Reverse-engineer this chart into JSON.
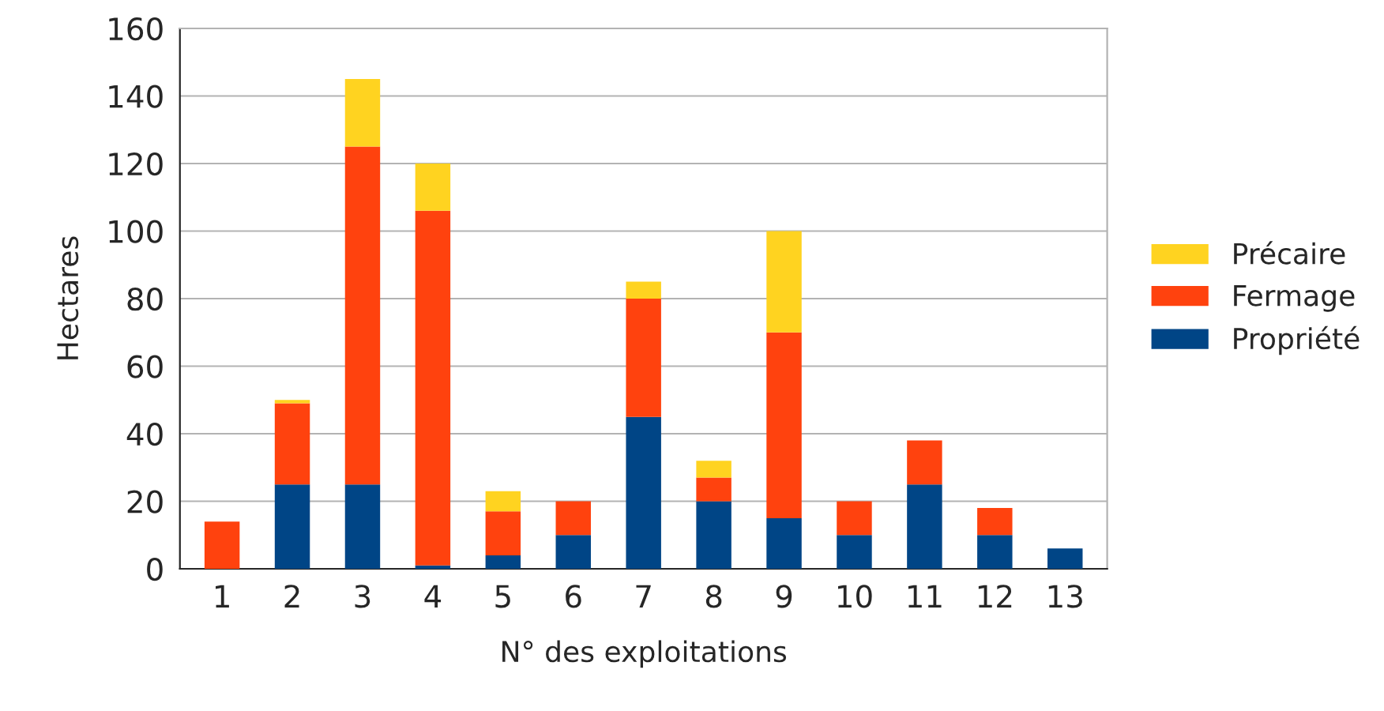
{
  "chart_data": {
    "type": "bar",
    "stacked": true,
    "xlabel": "N° des exploitations",
    "ylabel": "Hectares",
    "categories": [
      "1",
      "2",
      "3",
      "4",
      "5",
      "6",
      "7",
      "8",
      "9",
      "10",
      "11",
      "12",
      "13"
    ],
    "series": [
      {
        "name": "Propriété",
        "color": "#004586",
        "values": [
          null,
          25,
          25,
          1,
          4,
          10,
          45,
          20,
          15,
          10,
          25,
          10,
          6
        ]
      },
      {
        "name": "Fermage",
        "color": "#ff420e",
        "values": [
          14,
          24,
          100,
          105,
          13,
          10,
          35,
          7,
          55,
          10,
          13,
          8,
          null
        ]
      },
      {
        "name": "Précaire",
        "color": "#ffd320",
        "values": [
          null,
          1,
          20,
          14,
          6,
          null,
          5,
          5,
          30,
          null,
          null,
          null,
          null
        ]
      }
    ],
    "ylim": [
      0,
      160
    ],
    "yticks": [
      0,
      20,
      40,
      60,
      80,
      100,
      120,
      140,
      160
    ],
    "grid": "y",
    "legend": "right"
  }
}
